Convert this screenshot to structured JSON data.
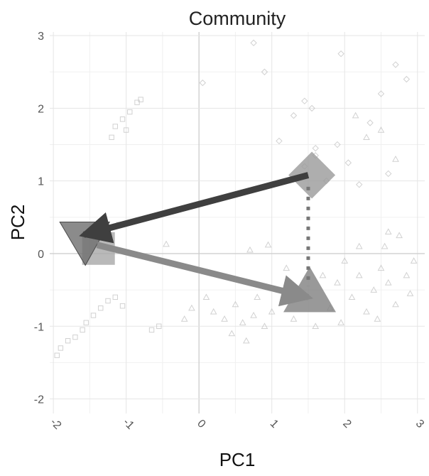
{
  "chart_data": {
    "type": "scatter",
    "title": "Community",
    "xlabel": "PC1",
    "ylabel": "PC2",
    "xlim": [
      -2.05,
      3.1
    ],
    "ylim": [
      -2.2,
      3.05
    ],
    "x_ticks": [
      -2,
      -1,
      0,
      1,
      2,
      3
    ],
    "y_ticks": [
      -2,
      -1,
      0,
      1,
      2,
      3
    ],
    "x_tick_labels": [
      "-2",
      "-1",
      "0",
      "1",
      "2",
      "3"
    ],
    "y_tick_labels": [
      "-2",
      "-1",
      "0",
      "1",
      "2",
      "3"
    ],
    "grid": true,
    "legend": "none",
    "centroids": [
      {
        "shape": "diamond",
        "x": 1.55,
        "y": 1.08,
        "color": "#9a9a9a"
      },
      {
        "shape": "square",
        "x": -1.38,
        "y": 0.07,
        "color": "#a8a8a8"
      },
      {
        "shape": "triangle-down",
        "x": -1.58,
        "y": 0.22,
        "color": "#6e6e6e"
      },
      {
        "shape": "triangle-up",
        "x": 1.52,
        "y": -0.62,
        "color": "#808080"
      }
    ],
    "arrows": [
      {
        "from": [
          1.5,
          1.08
        ],
        "to": [
          -1.58,
          0.26
        ],
        "color": "#3f3f3f",
        "style": "solid"
      },
      {
        "from": [
          -1.4,
          0.12
        ],
        "to": [
          1.5,
          -0.6
        ],
        "color": "#8a8a8a",
        "style": "solid"
      },
      {
        "from": [
          1.5,
          0.92
        ],
        "to": [
          1.5,
          -0.45
        ],
        "color": "#777777",
        "style": "dotted"
      }
    ],
    "background_points": [
      {
        "shape": "triangle",
        "x": 0.2,
        "y": -0.8
      },
      {
        "shape": "triangle",
        "x": 0.35,
        "y": -0.9
      },
      {
        "shape": "triangle",
        "x": 0.5,
        "y": -0.7
      },
      {
        "shape": "triangle",
        "x": 0.6,
        "y": -0.95
      },
      {
        "shape": "triangle",
        "x": 0.75,
        "y": -0.85
      },
      {
        "shape": "triangle",
        "x": 0.9,
        "y": -1.0
      },
      {
        "shape": "triangle",
        "x": 0.1,
        "y": -0.6
      },
      {
        "shape": "triangle",
        "x": -0.1,
        "y": -0.75
      },
      {
        "shape": "triangle",
        "x": -0.2,
        "y": -0.9
      },
      {
        "shape": "triangle",
        "x": 0.45,
        "y": -1.1
      },
      {
        "shape": "triangle",
        "x": 0.65,
        "y": -1.2
      },
      {
        "shape": "triangle",
        "x": 0.8,
        "y": -0.6
      },
      {
        "shape": "triangle",
        "x": 1.0,
        "y": -0.8
      },
      {
        "shape": "triangle",
        "x": 1.1,
        "y": -0.5
      },
      {
        "shape": "triangle",
        "x": 1.2,
        "y": -0.2
      },
      {
        "shape": "triangle",
        "x": 1.3,
        "y": -0.9
      },
      {
        "shape": "triangle",
        "x": 1.6,
        "y": -1.0
      },
      {
        "shape": "triangle",
        "x": 1.8,
        "y": -0.75
      },
      {
        "shape": "triangle",
        "x": 1.9,
        "y": -0.4
      },
      {
        "shape": "triangle",
        "x": 2.0,
        "y": -0.1
      },
      {
        "shape": "triangle",
        "x": 2.1,
        "y": -0.6
      },
      {
        "shape": "triangle",
        "x": 2.2,
        "y": -0.3
      },
      {
        "shape": "triangle",
        "x": 2.3,
        "y": -0.8
      },
      {
        "shape": "triangle",
        "x": 2.4,
        "y": -0.5
      },
      {
        "shape": "triangle",
        "x": 2.5,
        "y": -0.2
      },
      {
        "shape": "triangle",
        "x": 2.55,
        "y": 0.1
      },
      {
        "shape": "triangle",
        "x": 2.6,
        "y": -0.4
      },
      {
        "shape": "triangle",
        "x": 2.7,
        "y": -0.7
      },
      {
        "shape": "triangle",
        "x": 2.75,
        "y": 0.25
      },
      {
        "shape": "triangle",
        "x": 2.85,
        "y": -0.3
      },
      {
        "shape": "triangle",
        "x": 2.9,
        "y": -0.55
      },
      {
        "shape": "triangle",
        "x": 2.95,
        "y": -0.1
      },
      {
        "shape": "triangle",
        "x": 2.6,
        "y": 0.3
      },
      {
        "shape": "triangle",
        "x": 2.45,
        "y": -0.9
      },
      {
        "shape": "triangle",
        "x": 2.2,
        "y": 0.1
      },
      {
        "shape": "triangle",
        "x": 1.95,
        "y": -0.95
      },
      {
        "shape": "triangle",
        "x": 1.7,
        "y": -0.3
      },
      {
        "shape": "triangle",
        "x": 0.7,
        "y": 0.05
      },
      {
        "shape": "triangle",
        "x": 0.95,
        "y": 0.12
      },
      {
        "shape": "triangle",
        "x": -0.45,
        "y": 0.13
      },
      {
        "shape": "triangle",
        "x": 2.15,
        "y": 1.9
      },
      {
        "shape": "triangle",
        "x": 2.3,
        "y": 1.6
      },
      {
        "shape": "triangle",
        "x": 2.5,
        "y": 1.7
      },
      {
        "shape": "triangle",
        "x": 2.7,
        "y": 1.3
      },
      {
        "shape": "diamond",
        "x": 1.45,
        "y": 1.2
      },
      {
        "shape": "diamond",
        "x": 1.6,
        "y": 1.35
      },
      {
        "shape": "diamond",
        "x": 1.75,
        "y": 1.0
      },
      {
        "shape": "diamond",
        "x": 1.9,
        "y": 1.5
      },
      {
        "shape": "diamond",
        "x": 2.05,
        "y": 1.25
      },
      {
        "shape": "diamond",
        "x": 2.2,
        "y": 0.95
      },
      {
        "shape": "diamond",
        "x": 2.35,
        "y": 1.8
      },
      {
        "shape": "diamond",
        "x": 2.5,
        "y": 2.2
      },
      {
        "shape": "diamond",
        "x": 2.7,
        "y": 2.6
      },
      {
        "shape": "diamond",
        "x": 2.85,
        "y": 2.4
      },
      {
        "shape": "diamond",
        "x": 1.45,
        "y": 2.1
      },
      {
        "shape": "diamond",
        "x": 1.55,
        "y": 2.0
      },
      {
        "shape": "diamond",
        "x": 1.3,
        "y": 1.9
      },
      {
        "shape": "diamond",
        "x": 1.1,
        "y": 1.55
      },
      {
        "shape": "diamond",
        "x": 0.9,
        "y": 2.5
      },
      {
        "shape": "diamond",
        "x": 0.75,
        "y": 2.9
      },
      {
        "shape": "diamond",
        "x": 1.95,
        "y": 2.75
      },
      {
        "shape": "diamond",
        "x": 1.6,
        "y": 1.45
      },
      {
        "shape": "diamond",
        "x": 2.6,
        "y": 1.1
      },
      {
        "shape": "diamond",
        "x": 0.05,
        "y": 2.35
      },
      {
        "shape": "square",
        "x": -1.9,
        "y": -1.3
      },
      {
        "shape": "square",
        "x": -1.8,
        "y": -1.2
      },
      {
        "shape": "square",
        "x": -1.7,
        "y": -1.15
      },
      {
        "shape": "square",
        "x": -1.6,
        "y": -1.05
      },
      {
        "shape": "square",
        "x": -1.55,
        "y": -0.95
      },
      {
        "shape": "square",
        "x": -1.45,
        "y": -0.85
      },
      {
        "shape": "square",
        "x": -1.35,
        "y": -0.75
      },
      {
        "shape": "square",
        "x": -1.25,
        "y": -0.65
      },
      {
        "shape": "square",
        "x": -1.15,
        "y": -0.6
      },
      {
        "shape": "square",
        "x": -1.05,
        "y": -0.72
      },
      {
        "shape": "square",
        "x": -0.65,
        "y": -1.05
      },
      {
        "shape": "square",
        "x": -0.55,
        "y": -1.0
      },
      {
        "shape": "square",
        "x": -1.2,
        "y": 1.6
      },
      {
        "shape": "square",
        "x": -1.15,
        "y": 1.75
      },
      {
        "shape": "square",
        "x": -1.05,
        "y": 1.85
      },
      {
        "shape": "square",
        "x": -0.95,
        "y": 1.95
      },
      {
        "shape": "square",
        "x": -0.85,
        "y": 2.08
      },
      {
        "shape": "square",
        "x": -0.8,
        "y": 2.12
      },
      {
        "shape": "square",
        "x": -1.0,
        "y": 1.7
      },
      {
        "shape": "square",
        "x": -1.3,
        "y": 0.45
      },
      {
        "shape": "square",
        "x": -1.1,
        "y": 0.4
      },
      {
        "shape": "square",
        "x": -1.95,
        "y": -1.4
      }
    ]
  }
}
